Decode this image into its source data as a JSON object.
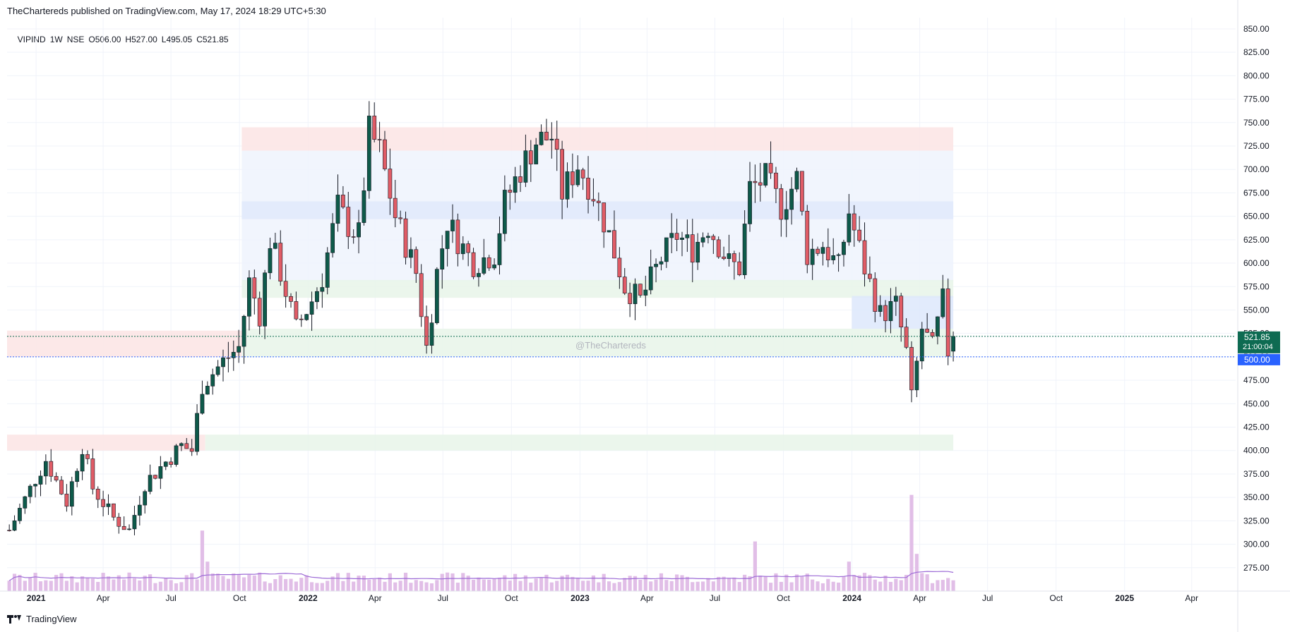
{
  "header": {
    "published": "TheChartereds published on TradingView.com, May 17, 2024 18:29 UTC+5:30"
  },
  "symbol": {
    "name": "VIPIND",
    "interval": "1W",
    "exchange": "NSE",
    "open": "O506.00",
    "high": "H527.00",
    "low": "L495.05",
    "close": "C521.85"
  },
  "watermark": "@TheChartereds",
  "footer": {
    "brand": "TradingView",
    "logo_icon": "tradingview-logo-icon"
  },
  "price_badges": {
    "last_price": "521.85",
    "countdown": "21:00:04",
    "level": "500.00",
    "last_color": "#0e6b52",
    "level_color": "#2962ff"
  },
  "chart_data": {
    "type": "candlestick",
    "interval": "1W",
    "y_axis_ticks": [
      "850.00",
      "825.00",
      "800.00",
      "775.00",
      "750.00",
      "725.00",
      "700.00",
      "675.00",
      "650.00",
      "625.00",
      "600.00",
      "575.00",
      "550.00",
      "525.00",
      "500.00",
      "475.00",
      "450.00",
      "425.00",
      "400.00",
      "375.00",
      "350.00",
      "325.00",
      "300.00",
      "275.00"
    ],
    "x_axis_ticks": [
      {
        "label": "2021",
        "date": "2021-01-01"
      },
      {
        "label": "Apr",
        "date": "2021-04-01"
      },
      {
        "label": "Jul",
        "date": "2021-07-01"
      },
      {
        "label": "Oct",
        "date": "2021-10-01"
      },
      {
        "label": "2022",
        "date": "2022-01-01"
      },
      {
        "label": "Apr",
        "date": "2022-04-01"
      },
      {
        "label": "Jul",
        "date": "2022-07-01"
      },
      {
        "label": "Oct",
        "date": "2022-10-01"
      },
      {
        "label": "2023",
        "date": "2023-01-01"
      },
      {
        "label": "Apr",
        "date": "2023-04-01"
      },
      {
        "label": "Jul",
        "date": "2023-07-01"
      },
      {
        "label": "Oct",
        "date": "2023-10-01"
      },
      {
        "label": "2024",
        "date": "2024-01-01"
      },
      {
        "label": "Apr",
        "date": "2024-04-01"
      },
      {
        "label": "Jul",
        "date": "2024-07-01"
      },
      {
        "label": "Oct",
        "date": "2024-10-01"
      },
      {
        "label": "2025",
        "date": "2025-01-01"
      },
      {
        "label": "Apr",
        "date": "2025-04-01"
      }
    ],
    "ylim": [
      250,
      862
    ],
    "xlim": [
      "2020-11-23",
      "2025-05-30"
    ],
    "price_key_points": [
      [
        "2020-11-26",
        315
      ],
      [
        "2020-12-31",
        370
      ],
      [
        "2021-01-14",
        390
      ],
      [
        "2021-02-11",
        345
      ],
      [
        "2021-03-04",
        405
      ],
      [
        "2021-03-18",
        360
      ],
      [
        "2021-04-15",
        328
      ],
      [
        "2021-05-06",
        315
      ],
      [
        "2021-05-27",
        365
      ],
      [
        "2021-06-24",
        388
      ],
      [
        "2021-07-15",
        405
      ],
      [
        "2021-07-29",
        400
      ],
      [
        "2021-08-12",
        470
      ],
      [
        "2021-09-09",
        495
      ],
      [
        "2021-09-30",
        510
      ],
      [
        "2021-10-14",
        580
      ],
      [
        "2021-10-28",
        545
      ],
      [
        "2021-11-11",
        625
      ],
      [
        "2021-11-25",
        590
      ],
      [
        "2021-12-16",
        530
      ],
      [
        "2022-01-06",
        560
      ],
      [
        "2022-01-20",
        585
      ],
      [
        "2022-02-10",
        660
      ],
      [
        "2022-02-24",
        640
      ],
      [
        "2022-03-10",
        630
      ],
      [
        "2022-03-24",
        740
      ],
      [
        "2022-04-07",
        720
      ],
      [
        "2022-04-28",
        650
      ],
      [
        "2022-05-26",
        590
      ],
      [
        "2022-06-09",
        510
      ],
      [
        "2022-06-23",
        590
      ],
      [
        "2022-07-07",
        645
      ],
      [
        "2022-07-21",
        625
      ],
      [
        "2022-08-11",
        600
      ],
      [
        "2022-09-08",
        610
      ],
      [
        "2022-09-22",
        665
      ],
      [
        "2022-10-13",
        700
      ],
      [
        "2022-11-03",
        730
      ],
      [
        "2022-11-24",
        735
      ],
      [
        "2022-12-08",
        675
      ],
      [
        "2022-12-29",
        705
      ],
      [
        "2023-01-19",
        675
      ],
      [
        "2023-02-09",
        630
      ],
      [
        "2023-03-02",
        575
      ],
      [
        "2023-03-23",
        560
      ],
      [
        "2023-04-20",
        605
      ],
      [
        "2023-05-11",
        630
      ],
      [
        "2023-06-01",
        615
      ],
      [
        "2023-06-22",
        640
      ],
      [
        "2023-07-20",
        600
      ],
      [
        "2023-08-03",
        595
      ],
      [
        "2023-08-17",
        680
      ],
      [
        "2023-09-07",
        690
      ],
      [
        "2023-09-28",
        660
      ],
      [
        "2023-10-19",
        690
      ],
      [
        "2023-11-02",
        610
      ],
      [
        "2023-11-23",
        620
      ],
      [
        "2023-12-14",
        595
      ],
      [
        "2023-12-28",
        655
      ],
      [
        "2024-01-18",
        595
      ],
      [
        "2024-02-08",
        545
      ],
      [
        "2024-02-29",
        555
      ],
      [
        "2024-03-14",
        505
      ],
      [
        "2024-03-21",
        455
      ],
      [
        "2024-04-04",
        530
      ],
      [
        "2024-04-18",
        510
      ],
      [
        "2024-05-02",
        560
      ],
      [
        "2024-05-09",
        506
      ],
      [
        "2024-05-16",
        521.85
      ]
    ],
    "last_candle": {
      "date": "2024-05-16",
      "open": 506.0,
      "high": 527.0,
      "low": 495.05,
      "close": 521.85
    },
    "zones": [
      {
        "kind": "supply",
        "from": "2021-10-04",
        "to": "2024-05-16",
        "low": 720,
        "high": 745,
        "color": "#fce4e4"
      },
      {
        "kind": "range",
        "from": "2021-10-04",
        "to": "2024-05-16",
        "low": 580,
        "high": 720,
        "color": "#eef3fd"
      },
      {
        "kind": "range",
        "from": "2021-10-04",
        "to": "2024-05-16",
        "low": 647,
        "high": 666,
        "color": "#e1e9fb"
      },
      {
        "kind": "demand",
        "from": "2021-10-04",
        "to": "2024-05-16",
        "low": 563,
        "high": 582,
        "color": "#e8f5e9"
      },
      {
        "kind": "demand",
        "from": "2021-10-04",
        "to": "2024-05-16",
        "low": 500,
        "high": 530,
        "color": "#e8f5e9"
      },
      {
        "kind": "supply",
        "from": "2020-11-23",
        "to": "2021-10-04",
        "low": 500,
        "high": 528,
        "color": "#fce4e4"
      },
      {
        "kind": "range",
        "from": "2024-01-01",
        "to": "2024-05-16",
        "low": 530,
        "high": 565,
        "color": "#dde8fb"
      },
      {
        "kind": "supply",
        "from": "2020-11-23",
        "to": "2021-08-16",
        "low": 400,
        "high": 417,
        "color": "#fce4e4"
      },
      {
        "kind": "demand",
        "from": "2021-08-16",
        "to": "2024-05-16",
        "low": 400,
        "high": 417,
        "color": "#e8f5e9"
      }
    ],
    "volume": {
      "color": "#e1bee7",
      "ma_color": "#9c6ad6",
      "spikes": [
        [
          "2021-08-09",
          3.9
        ],
        [
          "2021-08-16",
          1.9
        ],
        [
          "2023-08-21",
          3.2
        ],
        [
          "2023-12-25",
          1.9
        ],
        [
          "2024-03-18",
          6.2
        ],
        [
          "2024-03-25",
          2.4
        ]
      ]
    },
    "colors": {
      "up": "#0e5a4a",
      "down": "#e05c66",
      "grid": "#f0f3fa"
    }
  }
}
